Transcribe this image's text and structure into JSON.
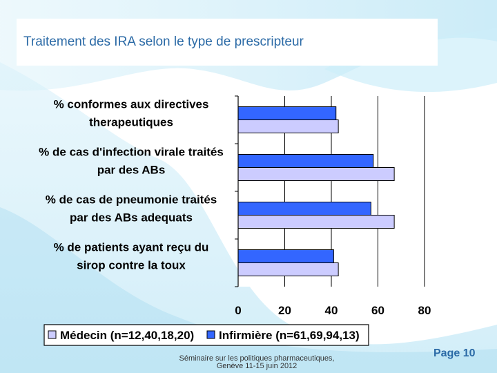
{
  "slide": {
    "title": "Traitement des IRA selon le type de prescripteur",
    "footer_line1": "Séminaire sur les politiques pharmaceutiques,",
    "footer_line2": "Genève 11-15 juin 2012",
    "page_label": "Page 10",
    "title_color": "#2b6aa6"
  },
  "chart_data": {
    "type": "bar",
    "orientation": "horizontal",
    "categories": [
      [
        "% conformes aux directives",
        "therapeutiques"
      ],
      [
        "% de cas d'infection virale traités",
        "par des ABs"
      ],
      [
        "% de cas de pneumonie traités",
        "par des ABs adequats"
      ],
      [
        "% de patients ayant reçu du",
        "sirop contre la toux"
      ]
    ],
    "series": [
      {
        "name": "Médecin (n=12,40,18,20)",
        "values": [
          43,
          67,
          67,
          43
        ],
        "color": "#ccccff"
      },
      {
        "name": "Infirmière (n=61,69,94,13)",
        "values": [
          42,
          58,
          57,
          41
        ],
        "color": "#3366ff"
      }
    ],
    "xlim": [
      0,
      80
    ],
    "xticks": [
      "0",
      "20",
      "40",
      "60",
      "80"
    ],
    "grid": "vertical",
    "legend": "bottom"
  }
}
